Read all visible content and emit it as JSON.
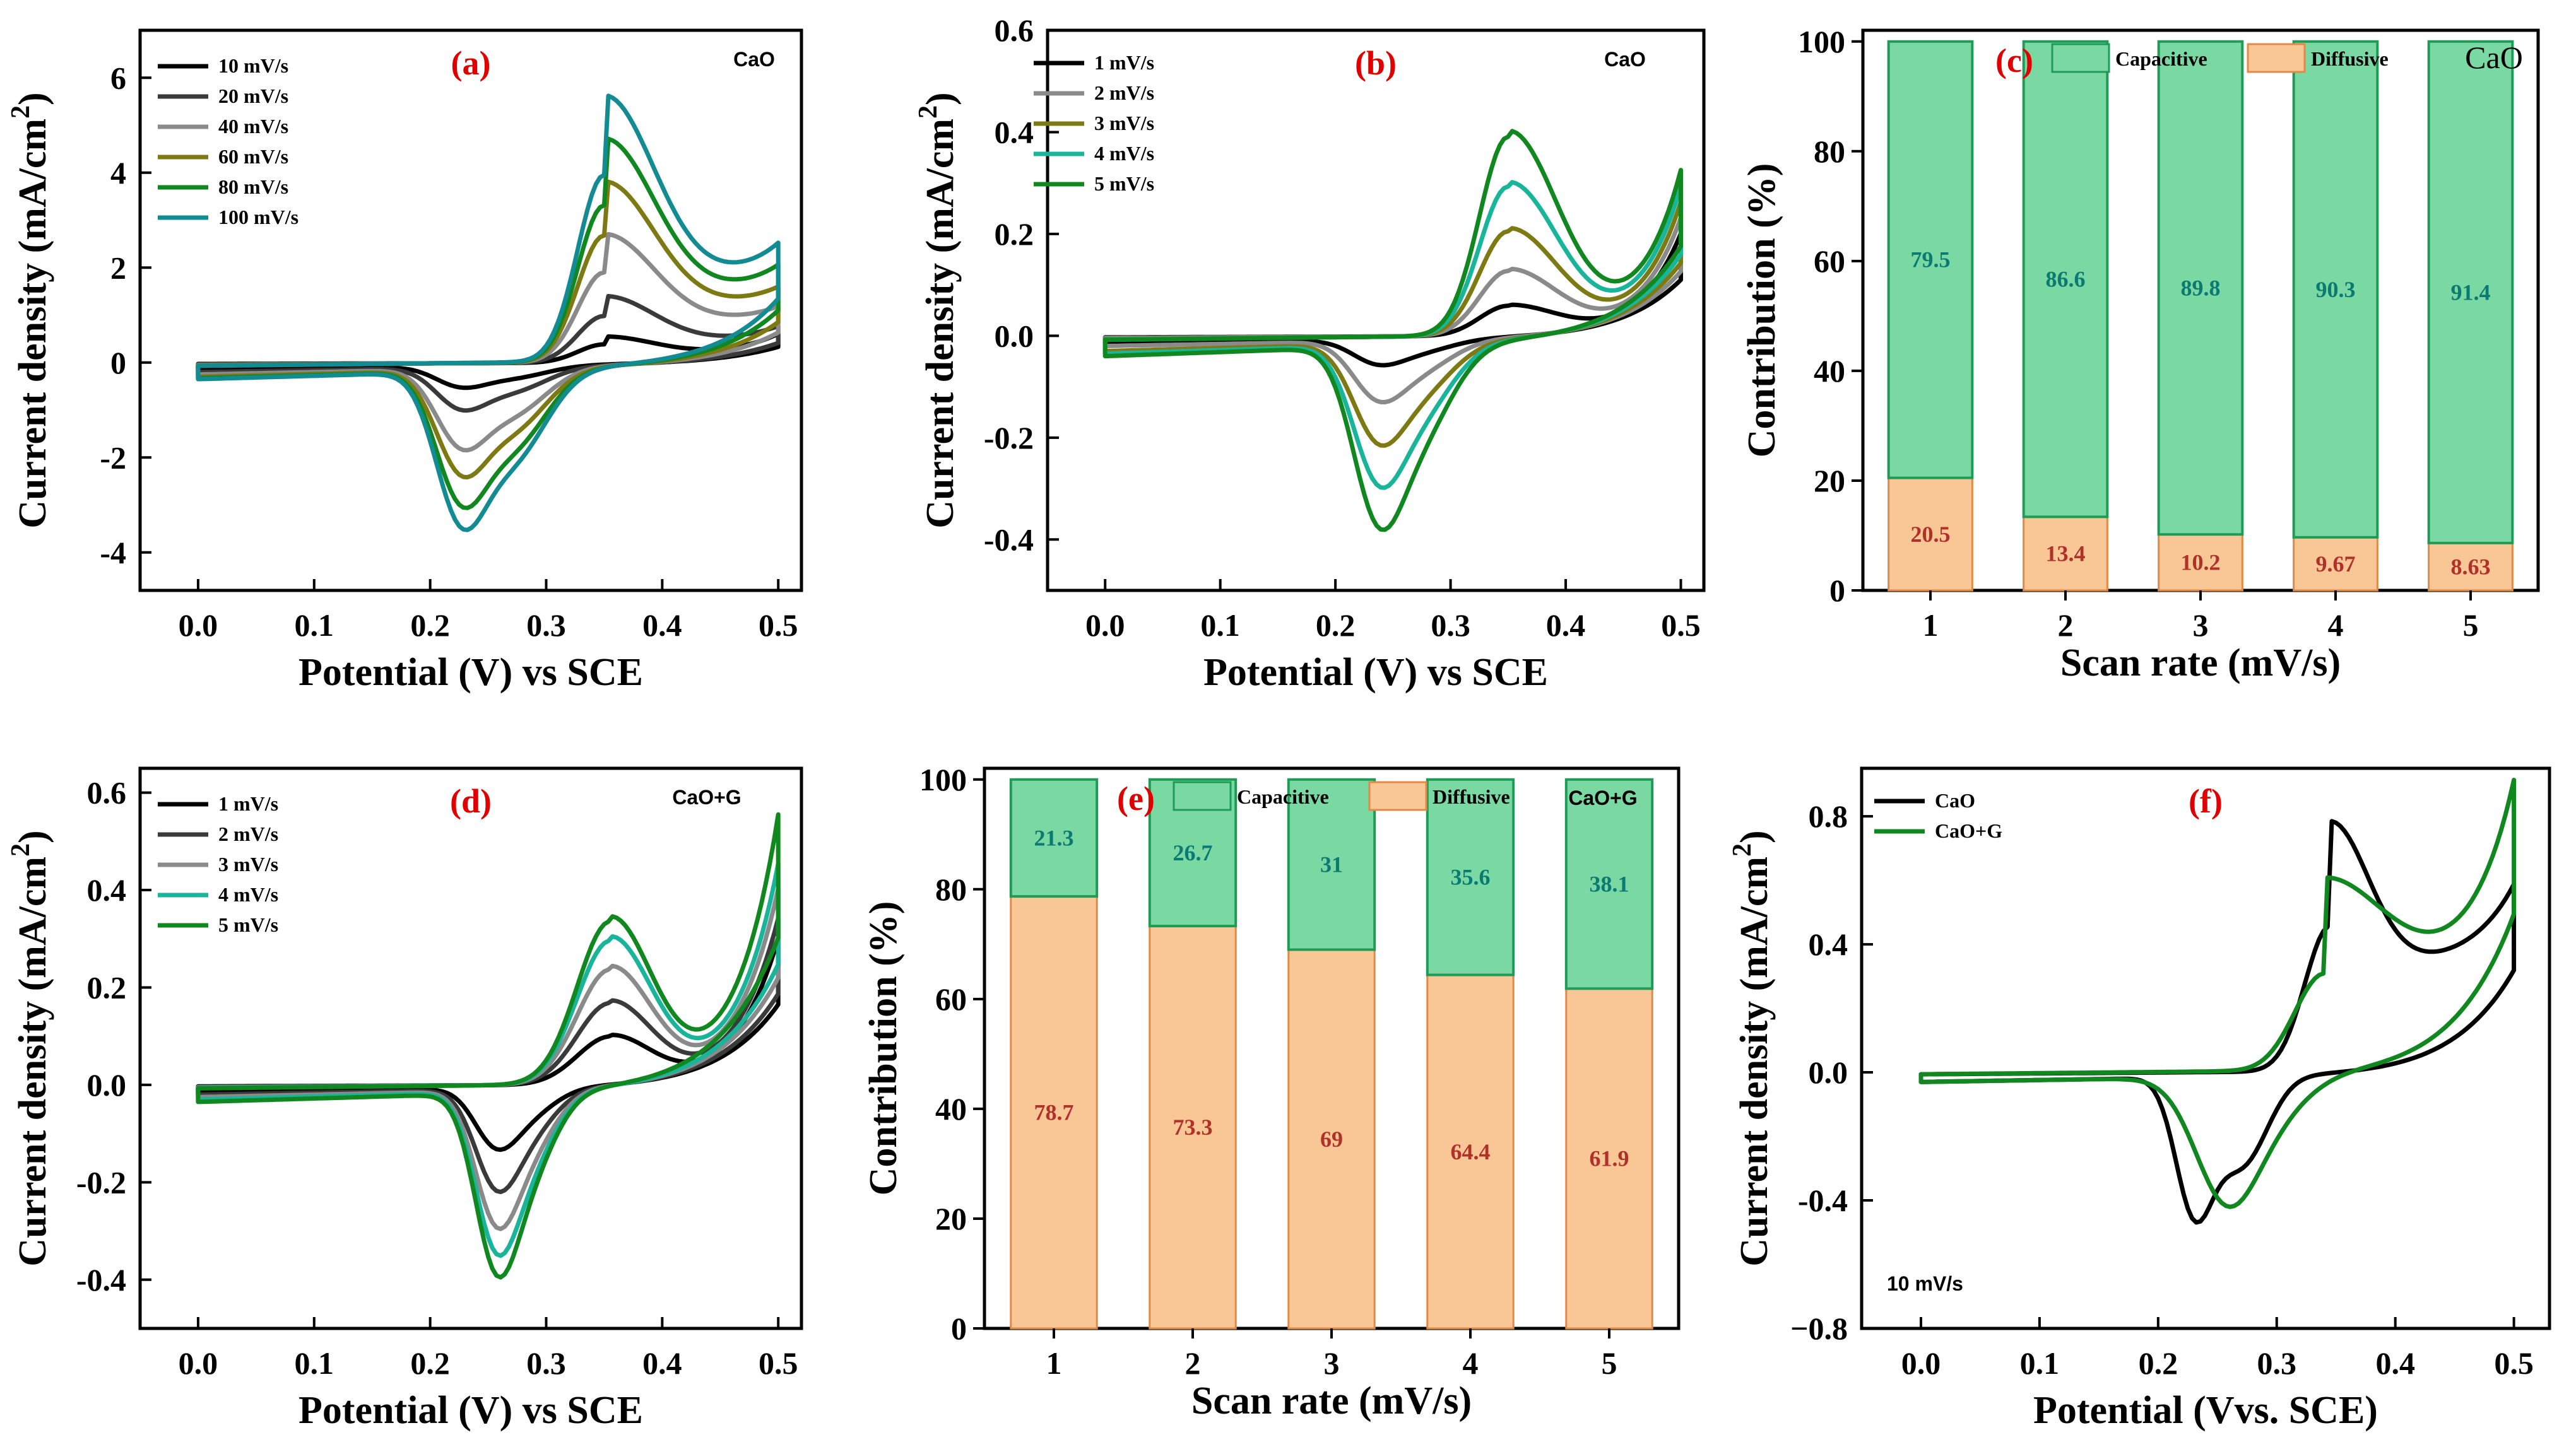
{
  "colors": {
    "capacitive": "#7ad8a3",
    "diffusive": "#f9c696",
    "bar_stroke_cap": "#1e9b57",
    "bar_stroke_dif": "#e08a45",
    "panel_label": "#e00000"
  },
  "chart_data": [
    {
      "id": "a",
      "type": "line",
      "panel_label": "(a)",
      "sample": "CaO",
      "xlabel": "Potential (V) vs SCE",
      "ylabel": "Current density (mA/cm",
      "ylabel_sup": "2",
      "ylabel_close": ")",
      "xlim": [
        -0.05,
        0.52
      ],
      "ylim": [
        -4.8,
        7.0
      ],
      "xticks": [
        0.0,
        0.1,
        0.2,
        0.3,
        0.4,
        0.5
      ],
      "xtick_labels": [
        "0.0",
        "0.1",
        "0.2",
        "0.3",
        "0.4",
        "0.5"
      ],
      "yticks": [
        -4,
        -2,
        0,
        2,
        4,
        6
      ],
      "ytick_labels": [
        "-4",
        "-2",
        "0",
        "2",
        "4",
        "6"
      ],
      "peak": {
        "ax": 0.35,
        "aw": 0.032,
        "bw": 0.06,
        "cx": 0.225,
        "cx2": 0.27,
        "cw": 0.03,
        "tail": 0.012,
        "base": 0.3
      },
      "series": [
        {
          "name": "10 mV/s",
          "color": "#000000",
          "anodic": 0.55,
          "cathodic": -0.5,
          "end": 0.6,
          "start": -0.15,
          "amp": 1.0
        },
        {
          "name": "20 mV/s",
          "color": "#3a3a3a",
          "anodic": 1.4,
          "cathodic": -1.0,
          "end": 0.75,
          "start": -0.2,
          "amp": 1.0
        },
        {
          "name": "40 mV/s",
          "color": "#8a8a8a",
          "anodic": 2.7,
          "cathodic": -1.9,
          "end": 1.15,
          "start": -0.25,
          "amp": 1.0
        },
        {
          "name": "60 mV/s",
          "color": "#7d7a14",
          "anodic": 3.8,
          "cathodic": -2.5,
          "end": 1.55,
          "start": -0.3,
          "amp": 1.0
        },
        {
          "name": "80 mV/s",
          "color": "#11881f",
          "anodic": 4.7,
          "cathodic": -3.2,
          "end": 2.0,
          "start": -0.33,
          "amp": 1.0
        },
        {
          "name": "100 mV/s",
          "color": "#138b93",
          "anodic": 5.6,
          "cathodic": -3.7,
          "end": 2.45,
          "start": -0.35,
          "amp": 1.0
        }
      ]
    },
    {
      "id": "b",
      "type": "line",
      "panel_label": "(b)",
      "sample": "CaO",
      "xlabel": "Potential (V) vs SCE",
      "ylabel": "Current density (mA/cm",
      "ylabel_sup": "2",
      "ylabel_close": ")",
      "xlim": [
        -0.05,
        0.52
      ],
      "ylim": [
        -0.5,
        0.6
      ],
      "xticks": [
        0.0,
        0.1,
        0.2,
        0.3,
        0.4,
        0.5
      ],
      "xtick_labels": [
        "0.0",
        "0.1",
        "0.2",
        "0.3",
        "0.4",
        "0.5"
      ],
      "yticks": [
        -0.4,
        -0.2,
        0.0,
        0.2,
        0.4,
        0.6
      ],
      "ytick_labels": [
        "-0.4",
        "-0.2",
        "0.0",
        "0.2",
        "0.4",
        "0.6"
      ],
      "peak": {
        "ax": 0.35,
        "aw": 0.035,
        "bw": 0.06,
        "cx": 0.235,
        "cx2": 0.27,
        "cw": 0.03,
        "tail": 0.012,
        "base": 0.03
      },
      "series": [
        {
          "name": "1 mV/s",
          "color": "#000000",
          "anodic": 0.06,
          "cathodic": -0.05,
          "end": 0.2,
          "start": -0.015,
          "amp": 1.0
        },
        {
          "name": "2 mV/s",
          "color": "#8a8a8a",
          "anodic": 0.13,
          "cathodic": -0.12,
          "end": 0.23,
          "start": -0.02,
          "amp": 1.0
        },
        {
          "name": "3 mV/s",
          "color": "#7d7a14",
          "anodic": 0.21,
          "cathodic": -0.2,
          "end": 0.26,
          "start": -0.03,
          "amp": 1.0
        },
        {
          "name": "4 mV/s",
          "color": "#18b59a",
          "anodic": 0.3,
          "cathodic": -0.28,
          "end": 0.29,
          "start": -0.035,
          "amp": 1.0
        },
        {
          "name": "5 mV/s",
          "color": "#11881f",
          "anodic": 0.4,
          "cathodic": -0.36,
          "end": 0.32,
          "start": -0.04,
          "amp": 1.0
        }
      ]
    },
    {
      "id": "d",
      "type": "line",
      "panel_label": "(d)",
      "sample": "CaO+G",
      "xlabel": "Potential (V) vs SCE",
      "ylabel": "Current density (mA/cm",
      "ylabel_sup": "2",
      "ylabel_close": ")",
      "xlim": [
        -0.05,
        0.52
      ],
      "ylim": [
        -0.5,
        0.65
      ],
      "xticks": [
        0.0,
        0.1,
        0.2,
        0.3,
        0.4,
        0.5
      ],
      "xtick_labels": [
        "0.0",
        "0.1",
        "0.2",
        "0.3",
        "0.4",
        "0.5"
      ],
      "yticks": [
        -0.4,
        -0.2,
        0.0,
        0.2,
        0.4,
        0.6
      ],
      "ytick_labels": [
        "-0.4",
        "-0.2",
        "0.0",
        "0.2",
        "0.4",
        "0.6"
      ],
      "peak": {
        "ax": 0.355,
        "aw": 0.04,
        "bw": 0.05,
        "cx": 0.255,
        "cx2": 0.28,
        "cw": 0.025,
        "tail": 0.015,
        "base": 0.03
      },
      "series": [
        {
          "name": "1 mV/s",
          "color": "#000000",
          "anodic": 0.1,
          "cathodic": -0.12,
          "end": 0.3,
          "start": -0.015,
          "amp": 1.0
        },
        {
          "name": "2 mV/s",
          "color": "#3a3a3a",
          "anodic": 0.17,
          "cathodic": -0.2,
          "end": 0.34,
          "start": -0.02,
          "amp": 1.0
        },
        {
          "name": "3 mV/s",
          "color": "#8a8a8a",
          "anodic": 0.24,
          "cathodic": -0.27,
          "end": 0.4,
          "start": -0.025,
          "amp": 1.0
        },
        {
          "name": "4 mV/s",
          "color": "#18b59a",
          "anodic": 0.3,
          "cathodic": -0.32,
          "end": 0.45,
          "start": -0.03,
          "amp": 1.0
        },
        {
          "name": "5 mV/s",
          "color": "#11881f",
          "anodic": 0.34,
          "cathodic": -0.36,
          "end": 0.55,
          "start": -0.035,
          "amp": 1.0
        }
      ]
    },
    {
      "id": "f",
      "type": "line",
      "panel_label": "(f)",
      "annotation": "10 mV/s",
      "xlabel": "Potential (Vvs. SCE)",
      "ylabel": "Current density (mA/cm",
      "ylabel_sup": "2",
      "ylabel_close": ")",
      "xlim": [
        -0.05,
        0.53
      ],
      "ylim": [
        -0.8,
        0.95
      ],
      "xticks": [
        0.0,
        0.1,
        0.2,
        0.3,
        0.4,
        0.5
      ],
      "xtick_labels": [
        "0.0",
        "0.1",
        "0.2",
        "0.3",
        "0.4",
        "0.5"
      ],
      "yticks": [
        -0.8,
        -0.4,
        0.0,
        0.4,
        0.8
      ],
      "ytick_labels": [
        "−0.8",
        "-0.4",
        "0.0",
        "0.4",
        "0.8"
      ],
      "series": [
        {
          "name": "CaO",
          "color": "#000000",
          "anodic": 0.78,
          "cathodic": -0.55,
          "end": 0.58,
          "start": -0.03,
          "amp": 1.0,
          "ax": 0.345,
          "aw": 0.03,
          "bw": 0.045,
          "cx": 0.23,
          "cx2": 0.27,
          "cw": 0.022,
          "tail": 0.01,
          "base": 0.42
        },
        {
          "name": "CaO+G",
          "color": "#11881f",
          "anodic": 0.6,
          "cathodic": -0.36,
          "end": 0.9,
          "start": -0.03,
          "amp": 1.0,
          "ax": 0.34,
          "aw": 0.035,
          "bw": 0.07,
          "cx": 0.255,
          "cx2": 0.28,
          "cw": 0.035,
          "tail": 0.02,
          "base": 0.5
        }
      ]
    },
    {
      "id": "c",
      "type": "bar",
      "stacked": true,
      "panel_label": "(c)",
      "sample": "CaO",
      "xlabel": "Scan rate (mV/s)",
      "ylabel": "Contribution (%)",
      "ylim": [
        0,
        100
      ],
      "yticks": [
        0,
        20,
        40,
        60,
        80,
        100
      ],
      "ytick_labels": [
        "0",
        "20",
        "40",
        "60",
        "80",
        "100"
      ],
      "categories": [
        "1",
        "2",
        "3",
        "4",
        "5"
      ],
      "legend": [
        "Capacitive",
        "Diffusive"
      ],
      "series": [
        {
          "name": "Diffusive",
          "values": [
            20.5,
            13.4,
            10.2,
            9.67,
            8.63
          ],
          "labels": [
            "20.5",
            "13.4",
            "10.2",
            "9.67",
            "8.63"
          ]
        },
        {
          "name": "Capacitive",
          "values": [
            79.5,
            86.6,
            89.8,
            90.3,
            91.4
          ],
          "labels": [
            "79.5",
            "86.6",
            "89.8",
            "90.3",
            "91.4"
          ]
        }
      ]
    },
    {
      "id": "e",
      "type": "bar",
      "stacked": true,
      "panel_label": "(e)",
      "sample": "CaO+G",
      "xlabel": "Scan rate (mV/s)",
      "ylabel": "Contribution (%)",
      "ylim": [
        0,
        100
      ],
      "yticks": [
        0,
        20,
        40,
        60,
        80,
        100
      ],
      "ytick_labels": [
        "0",
        "20",
        "40",
        "60",
        "80",
        "100"
      ],
      "categories": [
        "1",
        "2",
        "3",
        "4",
        "5"
      ],
      "legend": [
        "Capacitive",
        "Diffusive"
      ],
      "series": [
        {
          "name": "Diffusive",
          "values": [
            78.7,
            73.3,
            69,
            64.4,
            61.9
          ],
          "labels": [
            "78.7",
            "73.3",
            "69",
            "64.4",
            "61.9"
          ]
        },
        {
          "name": "Capacitive",
          "values": [
            21.3,
            26.7,
            31,
            35.6,
            38.1
          ],
          "labels": [
            "21.3",
            "26.7",
            "31",
            "35.6",
            "38.1"
          ]
        }
      ]
    }
  ]
}
